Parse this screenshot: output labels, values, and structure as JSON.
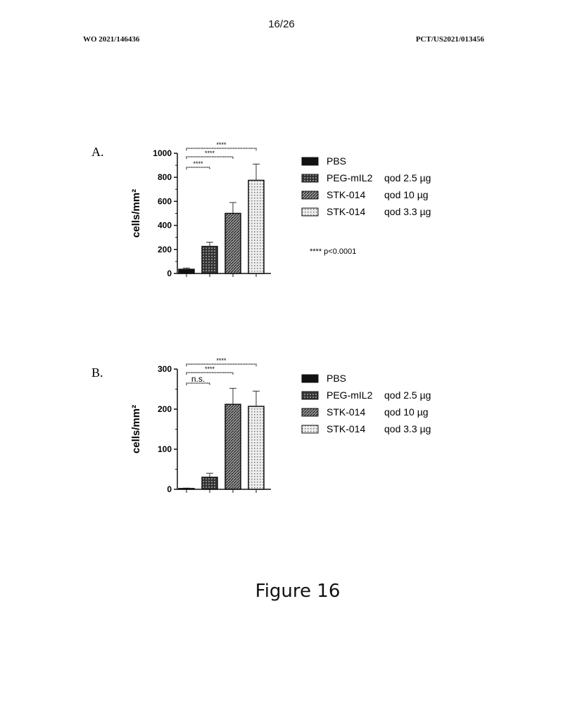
{
  "header": {
    "page": "16/26",
    "left": "WO 2021/146436",
    "right": "PCT/US2021/013456"
  },
  "caption": "Figure 16",
  "colors": {
    "pbs": "#111111",
    "peg": "#333333",
    "stk10": "#777777",
    "stk33": "#dddddd"
  },
  "legend": [
    {
      "name": "PBS",
      "dose": ""
    },
    {
      "name": "PEG-mIL2",
      "dose": "qod 2.5 µg"
    },
    {
      "name": "STK-014",
      "dose": "qod 10 µg"
    },
    {
      "name": "STK-014",
      "dose": "qod 3.3 µg"
    }
  ],
  "chart_data": [
    {
      "type": "bar",
      "panel": "A.",
      "ylabel": "cells/mm²",
      "ylim": [
        0,
        1000
      ],
      "yticks": [
        0,
        200,
        400,
        600,
        800,
        1000
      ],
      "categories": [
        "PBS",
        "PEG-mIL2 qod 2.5 µg",
        "STK-014 qod 10 µg",
        "STK-014 qod 3.3 µg"
      ],
      "values": [
        35,
        225,
        500,
        775
      ],
      "error_upper": [
        45,
        260,
        590,
        910
      ],
      "significance": [
        {
          "from": 0,
          "to": 1,
          "label": "****"
        },
        {
          "from": 0,
          "to": 2,
          "label": "****"
        },
        {
          "from": 0,
          "to": 3,
          "label": "****"
        }
      ],
      "note": "**** p<0.0001"
    },
    {
      "type": "bar",
      "panel": "B.",
      "ylabel": "cells/mm²",
      "ylim": [
        0,
        300
      ],
      "yticks": [
        0,
        100,
        200,
        300
      ],
      "categories": [
        "PBS",
        "PEG-mIL2 qod 2.5 µg",
        "STK-014 qod 10 µg",
        "STK-014 qod 3.3 µg"
      ],
      "values": [
        2,
        30,
        212,
        207
      ],
      "error_upper": [
        3,
        40,
        252,
        245
      ],
      "significance": [
        {
          "from": 0,
          "to": 1,
          "label": "n.s."
        },
        {
          "from": 0,
          "to": 2,
          "label": "****"
        },
        {
          "from": 0,
          "to": 3,
          "label": "****"
        }
      ]
    }
  ]
}
